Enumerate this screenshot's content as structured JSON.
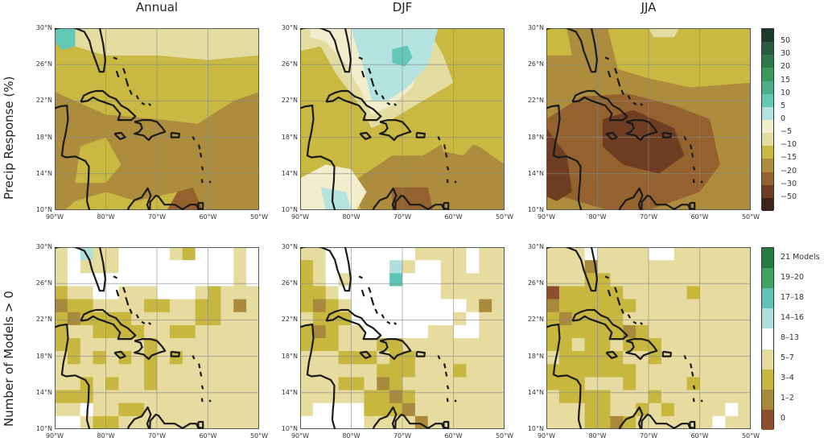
{
  "column_titles": [
    "Annual",
    "DJF",
    "JJA"
  ],
  "row_labels": [
    "Precip Response (%)",
    "Number of Models > 0"
  ],
  "lat_ticks": [
    "30°N",
    "26°N",
    "22°N",
    "18°N",
    "14°N",
    "10°N"
  ],
  "lon_ticks": [
    "90°W",
    "80°W",
    "70°W",
    "60°W",
    "50°W"
  ],
  "precip_colorbar": {
    "labels": [
      "50",
      "30",
      "20",
      "15",
      "10",
      "5",
      "0",
      "−5",
      "−10",
      "−15",
      "−20",
      "−30",
      "−50"
    ],
    "colors": [
      "#1c3b2b",
      "#275c3e",
      "#2f7a4b",
      "#3a9a5c",
      "#4bb08a",
      "#62c8b6",
      "#b5e3e0",
      "#f2edcc",
      "#e3dda2",
      "#c9b841",
      "#ad8d3d",
      "#94622f",
      "#6e3d22",
      "#3f2318"
    ]
  },
  "models_colorbar": {
    "labels": [
      "21 Models",
      "19–20",
      "17–18",
      "14–16",
      "8–13",
      "5–7",
      "3–4",
      "1–2",
      "0"
    ],
    "colors": [
      "#287a45",
      "#3ea560",
      "#5cc3b5",
      "#b0dfdc",
      "#ffffff",
      "#e6dc9f",
      "#c8b73f",
      "#a98a3c",
      "#8e4f2e"
    ]
  }
}
